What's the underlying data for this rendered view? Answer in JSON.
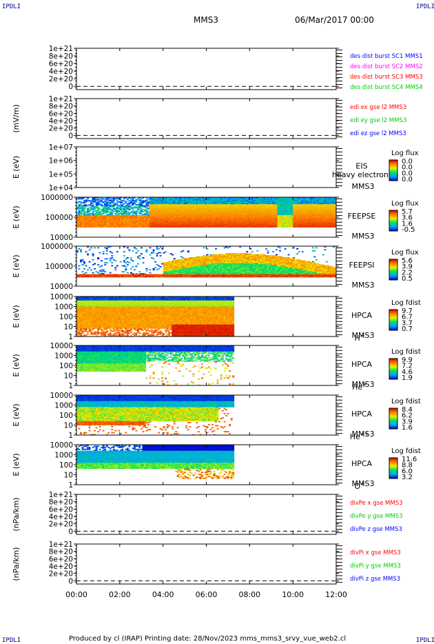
{
  "corners": {
    "label": "IPDLI"
  },
  "header": {
    "spacecraft": "MMS3",
    "date": "06/Mar/2017 00:00"
  },
  "footer": {
    "text": "Produced by cl (IRAP)    Printing date: 28/Nov/2023    mms_mms3_srvy_vue_web2.cl"
  },
  "colors": {
    "mms1": "#0000ff",
    "mms2": "#ff00ff",
    "mms3": "#ff0000",
    "mms4": "#00cc00",
    "x": "#ff0000",
    "y": "#00cc00",
    "z": "#0000ff"
  },
  "chart_data": [
    {
      "type": "line",
      "id": "des",
      "ylabel": "",
      "yticks": [
        "1e+21",
        "8e+20",
        "6e+20",
        "4e+20",
        "2e+20",
        "0"
      ],
      "series": [
        {
          "name": "des dist burst SC1 MMS1",
          "color": "#0000ff"
        },
        {
          "name": "des dist burst SC2 MMS2",
          "color": "#ff00ff"
        },
        {
          "name": "des dist burst SC3 MMS3",
          "color": "#ff0000"
        },
        {
          "name": "des dist burst SC4 MMS4",
          "color": "#00cc00"
        }
      ],
      "values": []
    },
    {
      "type": "line",
      "id": "edi",
      "ylabel": "(mV/m)",
      "yticks": [
        "1e+21",
        "8e+20",
        "6e+20",
        "4e+20",
        "2e+20",
        "0"
      ],
      "series": [
        {
          "name": "edi ex gse l2 MMS3",
          "color": "#ff0000"
        },
        {
          "name": "edi ey gse l2 MMS3",
          "color": "#00cc00"
        },
        {
          "name": "edi ez gse l2 MMS3",
          "color": "#0000ff"
        }
      ],
      "values": []
    },
    {
      "type": "heatmap",
      "id": "eis",
      "ylabel": "E (eV)",
      "yticks": [
        "1e+07",
        "1e+06",
        "1e+05",
        "1e+04"
      ],
      "instrument": [
        "EIS",
        "MMS3"
      ],
      "overlay_text": "heavy electron to",
      "colorbar": {
        "title": "Log flux",
        "ticks": [
          "0.0",
          "0.0",
          "0.0",
          "0.0"
        ]
      },
      "coverage": []
    },
    {
      "type": "heatmap",
      "id": "feepse",
      "ylabel": "E (eV)",
      "yticks": [
        "1000000",
        "100000",
        "10000"
      ],
      "instrument": [
        "FEEPSE",
        "MMS3"
      ],
      "colorbar": {
        "title": "Log flux",
        "ticks": [
          "5.7",
          "3.6",
          "1.6",
          "-0.5"
        ]
      },
      "coverage": [
        0,
        12
      ]
    },
    {
      "type": "heatmap",
      "id": "feepsi",
      "ylabel": "E (eV)",
      "yticks": [
        "1000000",
        "100000",
        "10000"
      ],
      "instrument": [
        "FEEPSI",
        "MMS3"
      ],
      "colorbar": {
        "title": "Log flux",
        "ticks": [
          "5.6",
          "3.9",
          "2.2",
          "0.5"
        ]
      },
      "coverage": [
        0,
        12
      ]
    },
    {
      "type": "heatmap",
      "id": "hpca-h",
      "ylabel": "E (eV)",
      "yticks": [
        "10000",
        "1000",
        "100",
        "10",
        "1"
      ],
      "instrument": [
        "HPCA",
        "MMS3"
      ],
      "species": "H",
      "charge": "+",
      "colorbar": {
        "title": "Log fdist",
        "ticks": [
          "9.7",
          "6.7",
          "3.7",
          "0.7"
        ]
      },
      "coverage": [
        0,
        7.3
      ]
    },
    {
      "type": "heatmap",
      "id": "hpca-he1",
      "ylabel": "E (eV)",
      "yticks": [
        "10000",
        "1000",
        "100",
        "10",
        "1"
      ],
      "instrument": [
        "HPCA",
        "MMS3"
      ],
      "species": "He",
      "charge": "+",
      "colorbar": {
        "title": "Log fdist",
        "ticks": [
          "9.9",
          "7.2",
          "4.6",
          "1.9"
        ]
      },
      "coverage": [
        0,
        7.3
      ]
    },
    {
      "type": "heatmap",
      "id": "hpca-he2",
      "ylabel": "E (eV)",
      "yticks": [
        "10000",
        "1000",
        "100",
        "10",
        "1"
      ],
      "instrument": [
        "HPCA",
        "MMS3"
      ],
      "species": "He",
      "charge": "++",
      "colorbar": {
        "title": "Log fdist",
        "ticks": [
          "8.4",
          "6.2",
          "3.9",
          "1.6"
        ]
      },
      "coverage": [
        0,
        7.3
      ]
    },
    {
      "type": "heatmap",
      "id": "hpca-o",
      "ylabel": "E (eV)",
      "yticks": [
        "10000",
        "1000",
        "100",
        "10",
        "1"
      ],
      "instrument": [
        "HPCA",
        "MMS3"
      ],
      "species": "O",
      "charge": "+",
      "colorbar": {
        "title": "Log fdist",
        "ticks": [
          "11.6",
          "8.8",
          "6.0",
          "3.2"
        ]
      },
      "coverage": [
        0,
        7.3
      ]
    },
    {
      "type": "line",
      "id": "divpe",
      "ylabel": "(nPa/km)",
      "yticks": [
        "1e+21",
        "8e+20",
        "6e+20",
        "4e+20",
        "2e+20",
        "0"
      ],
      "series": [
        {
          "name": "divPe x gse MMS3",
          "color": "#ff0000"
        },
        {
          "name": "divPe y gse MMS3",
          "color": "#00cc00"
        },
        {
          "name": "divPe z gse MMS3",
          "color": "#0000ff"
        }
      ],
      "values": []
    },
    {
      "type": "line",
      "id": "divpi",
      "ylabel": "(nPa/km)",
      "yticks": [
        "1e+21",
        "8e+20",
        "6e+20",
        "4e+20",
        "2e+20",
        "0"
      ],
      "series": [
        {
          "name": "divPi x gse MMS3",
          "color": "#ff0000"
        },
        {
          "name": "divPi y gse MMS3",
          "color": "#00cc00"
        },
        {
          "name": "divPi z gse MMS3",
          "color": "#0000ff"
        }
      ],
      "values": []
    }
  ],
  "xaxis": {
    "ticks": [
      "00:00",
      "02:00",
      "04:00",
      "06:00",
      "08:00",
      "10:00",
      "12:00"
    ],
    "range_hours": [
      0,
      12
    ]
  }
}
